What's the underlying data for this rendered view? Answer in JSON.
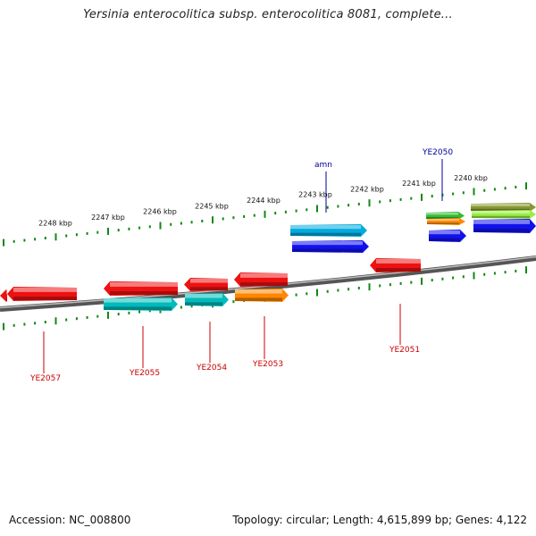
{
  "title": "Yersinia enterocolitica subsp. enterocolitica 8081, complete...",
  "footer": {
    "accession": "Accession: NC_008800",
    "summary": "Topology: circular; Length: 4,615,899 bp; Genes: 4,122"
  },
  "ticks": [
    "2248 kbp",
    "2247 kbp",
    "2246 kbp",
    "2245 kbp",
    "2244 kbp",
    "2243 kbp",
    "2242 kbp",
    "2241 kbp",
    "2240 kbp"
  ],
  "genes_top": [
    {
      "color": "#00aadd"
    },
    {
      "color": "#1111ee"
    },
    {
      "color": "#33bb33"
    },
    {
      "color": "#ff8800"
    },
    {
      "color": "#1111ee"
    },
    {
      "color": "#889933"
    },
    {
      "color": "#99ee44"
    },
    {
      "color": "#1111ee"
    }
  ],
  "genes_bottom": [
    {
      "color": "#ee1111"
    },
    {
      "color": "#ee1111"
    },
    {
      "color": "#ee1111"
    },
    {
      "color": "#00bbbb"
    },
    {
      "color": "#ee1111"
    },
    {
      "color": "#00bbbb"
    },
    {
      "color": "#ee1111"
    },
    {
      "color": "#ff8800"
    },
    {
      "color": "#ee1111"
    }
  ],
  "labels": [
    {
      "text": "amn",
      "color": "#000099"
    },
    {
      "text": "YE2050",
      "color": "#000099"
    },
    {
      "text": "YE2057",
      "color": "#cc0000"
    },
    {
      "text": "YE2055",
      "color": "#cc0000"
    },
    {
      "text": "YE2054",
      "color": "#cc0000"
    },
    {
      "text": "YE2053",
      "color": "#cc0000"
    },
    {
      "text": "YE2051",
      "color": "#cc0000"
    }
  ]
}
